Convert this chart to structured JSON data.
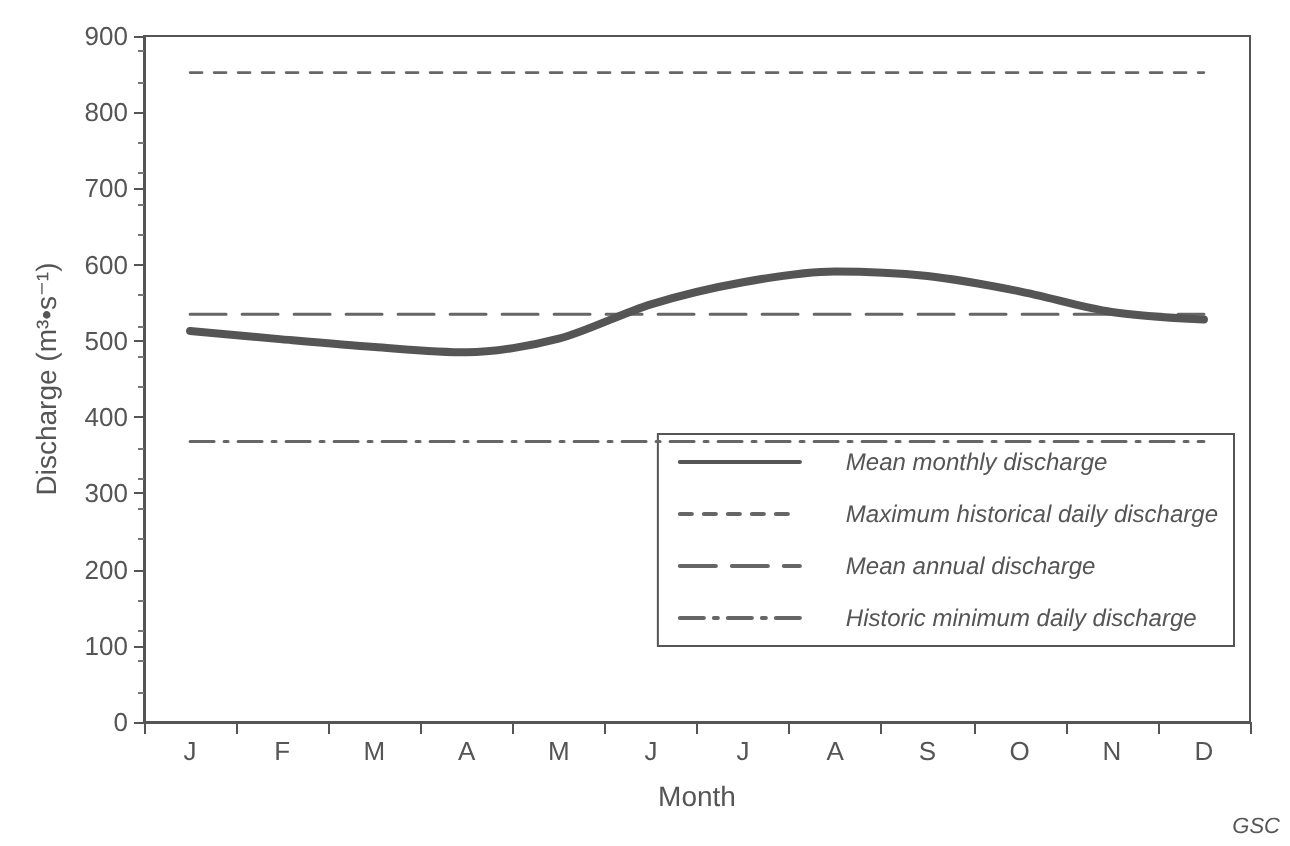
{
  "chart_data": {
    "type": "line",
    "xlabel": "Month",
    "ylabel": "Discharge (m³•s⁻¹)",
    "categories": [
      "J",
      "F",
      "M",
      "A",
      "M",
      "J",
      "J",
      "A",
      "S",
      "O",
      "N",
      "D"
    ],
    "series": [
      {
        "name": "Mean monthly discharge",
        "color": "#555555",
        "line_style": "solid",
        "values": [
          513,
          502,
          492,
          485,
          503,
          548,
          577,
          591,
          585,
          565,
          538,
          528
        ]
      },
      {
        "name": "Maximum historical daily discharge",
        "color": "#666666",
        "line_style": "dashed",
        "values": [
          852,
          852,
          852,
          852,
          852,
          852,
          852,
          852,
          852,
          852,
          852,
          852
        ]
      },
      {
        "name": "Mean annual discharge",
        "color": "#666666",
        "line_style": "dashed",
        "values": [
          535,
          535,
          535,
          535,
          535,
          535,
          535,
          535,
          535,
          535,
          535,
          535
        ]
      },
      {
        "name": "Historic minimum daily discharge",
        "color": "#666666",
        "line_style": "dashdot",
        "values": [
          368,
          368,
          368,
          368,
          368,
          368,
          368,
          368,
          368,
          368,
          368,
          368
        ]
      }
    ],
    "ylim": [
      0,
      900
    ],
    "yticks": [
      0,
      100,
      200,
      300,
      400,
      500,
      600,
      700,
      800,
      900
    ],
    "grid": false,
    "legend": "bottom right",
    "marker": "none",
    "annotations": [
      "GSC"
    ]
  }
}
